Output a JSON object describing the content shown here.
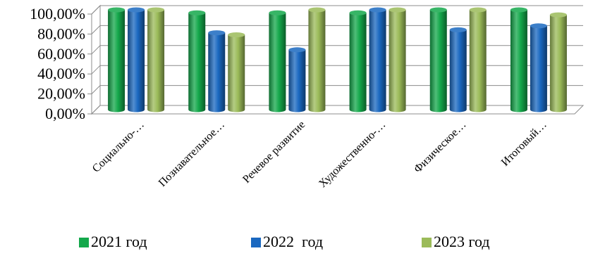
{
  "chart_data": {
    "type": "bar",
    "categories": [
      "Социально-…",
      "Познавательное…",
      "Речевое развитие",
      "Художественно-…",
      "Физическое…",
      "Итоговый…"
    ],
    "series": [
      {
        "name": "2021 год",
        "color": "#14A84B",
        "values": [
          100,
          97,
          97,
          97,
          100,
          100
        ]
      },
      {
        "name": "2022  год",
        "color": "#1A68C0",
        "values": [
          100,
          77,
          60,
          100,
          80,
          84
        ]
      },
      {
        "name": "2023 год",
        "color": "#9BBB59",
        "values": [
          100,
          75,
          100,
          100,
          100,
          95
        ]
      }
    ],
    "y_ticks": [
      "0,00%",
      "20,00%",
      "40,00%",
      "60,00%",
      "80,00%",
      "100,00%"
    ],
    "ylim": [
      0,
      100
    ],
    "grid": true,
    "legend_position": "bottom",
    "style": "3d-cylinder"
  }
}
